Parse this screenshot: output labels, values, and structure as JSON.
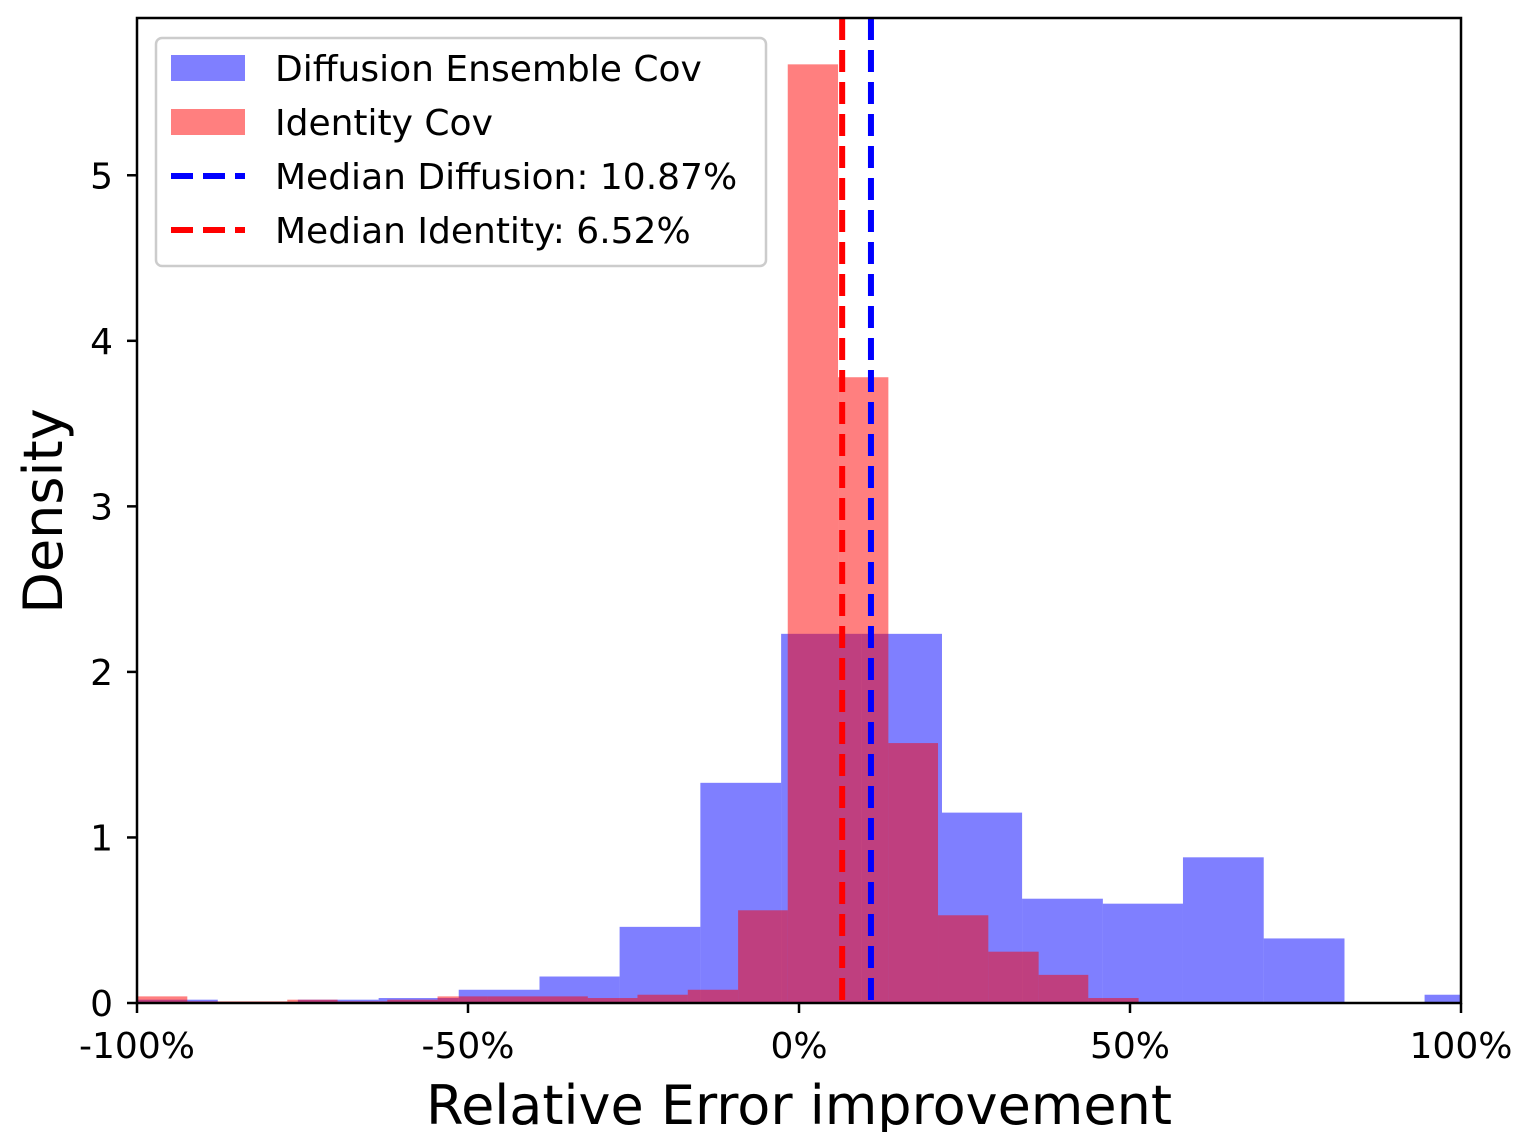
{
  "chart_data": {
    "type": "histogram",
    "title": "",
    "xlabel": "Relative Error improvement",
    "ylabel": "Density",
    "xlim": [
      -100,
      100
    ],
    "ylim": [
      0,
      5.95
    ],
    "x_ticks": [
      {
        "value": -100,
        "label": "-100%"
      },
      {
        "value": -50,
        "label": "-50%"
      },
      {
        "value": 0,
        "label": "0%"
      },
      {
        "value": 50,
        "label": "50%"
      },
      {
        "value": 100,
        "label": "100%"
      }
    ],
    "y_ticks": [
      {
        "value": 0,
        "label": "0"
      },
      {
        "value": 1,
        "label": "1"
      },
      {
        "value": 2,
        "label": "2"
      },
      {
        "value": 3,
        "label": "3"
      },
      {
        "value": 4,
        "label": "4"
      },
      {
        "value": 5,
        "label": "5"
      }
    ],
    "grid": false,
    "legend_position": "top-left",
    "series": [
      {
        "name": "Diffusion Ensemble Cov",
        "color": "#0000ff",
        "opacity": 0.5,
        "bins": [
          {
            "x0": -100.0,
            "x1": -87.8,
            "y": 0.02
          },
          {
            "x0": -87.8,
            "x1": -75.7,
            "y": 0.0
          },
          {
            "x0": -75.7,
            "x1": -63.5,
            "y": 0.02
          },
          {
            "x0": -63.5,
            "x1": -51.4,
            "y": 0.03
          },
          {
            "x0": -51.4,
            "x1": -39.2,
            "y": 0.08
          },
          {
            "x0": -39.2,
            "x1": -27.1,
            "y": 0.16
          },
          {
            "x0": -27.1,
            "x1": -14.9,
            "y": 0.46
          },
          {
            "x0": -14.9,
            "x1": -2.7,
            "y": 1.33
          },
          {
            "x0": -2.7,
            "x1": 9.4,
            "y": 2.23
          },
          {
            "x0": 9.4,
            "x1": 21.6,
            "y": 2.23
          },
          {
            "x0": 21.6,
            "x1": 33.7,
            "y": 1.15
          },
          {
            "x0": 33.7,
            "x1": 45.9,
            "y": 0.63
          },
          {
            "x0": 45.9,
            "x1": 58.0,
            "y": 0.6
          },
          {
            "x0": 58.0,
            "x1": 70.2,
            "y": 0.88
          },
          {
            "x0": 70.2,
            "x1": 82.4,
            "y": 0.39
          },
          {
            "x0": 82.4,
            "x1": 94.5,
            "y": 0.0
          },
          {
            "x0": 94.5,
            "x1": 106.7,
            "y": 0.05
          }
        ]
      },
      {
        "name": "Identity Cov",
        "color": "#ff0000",
        "opacity": 0.5,
        "bins": [
          {
            "x0": -100.0,
            "x1": -92.4,
            "y": 0.04
          },
          {
            "x0": -92.4,
            "x1": -84.9,
            "y": 0.01
          },
          {
            "x0": -84.9,
            "x1": -77.3,
            "y": 0.01
          },
          {
            "x0": -77.3,
            "x1": -69.7,
            "y": 0.02
          },
          {
            "x0": -69.7,
            "x1": -62.2,
            "y": 0.01
          },
          {
            "x0": -62.2,
            "x1": -54.6,
            "y": 0.02
          },
          {
            "x0": -54.6,
            "x1": -47.1,
            "y": 0.04
          },
          {
            "x0": -47.1,
            "x1": -39.5,
            "y": 0.04
          },
          {
            "x0": -39.5,
            "x1": -31.9,
            "y": 0.04
          },
          {
            "x0": -31.9,
            "x1": -24.4,
            "y": 0.03
          },
          {
            "x0": -24.4,
            "x1": -16.8,
            "y": 0.05
          },
          {
            "x0": -16.8,
            "x1": -9.2,
            "y": 0.08
          },
          {
            "x0": -9.2,
            "x1": -1.7,
            "y": 0.56
          },
          {
            "x0": -1.7,
            "x1": 5.9,
            "y": 5.67
          },
          {
            "x0": 5.9,
            "x1": 13.5,
            "y": 3.78
          },
          {
            "x0": 13.5,
            "x1": 21.0,
            "y": 1.57
          },
          {
            "x0": 21.0,
            "x1": 28.6,
            "y": 0.53
          },
          {
            "x0": 28.6,
            "x1": 36.2,
            "y": 0.31
          },
          {
            "x0": 36.2,
            "x1": 43.7,
            "y": 0.17
          },
          {
            "x0": 43.7,
            "x1": 51.3,
            "y": 0.03
          }
        ]
      }
    ],
    "vlines": [
      {
        "name": "Median Diffusion: 10.87%",
        "x": 10.87,
        "color": "#0000ff",
        "style": "dashed"
      },
      {
        "name": "Median Identity: 6.52%",
        "x": 6.52,
        "color": "#ff0000",
        "style": "dashed"
      }
    ]
  }
}
